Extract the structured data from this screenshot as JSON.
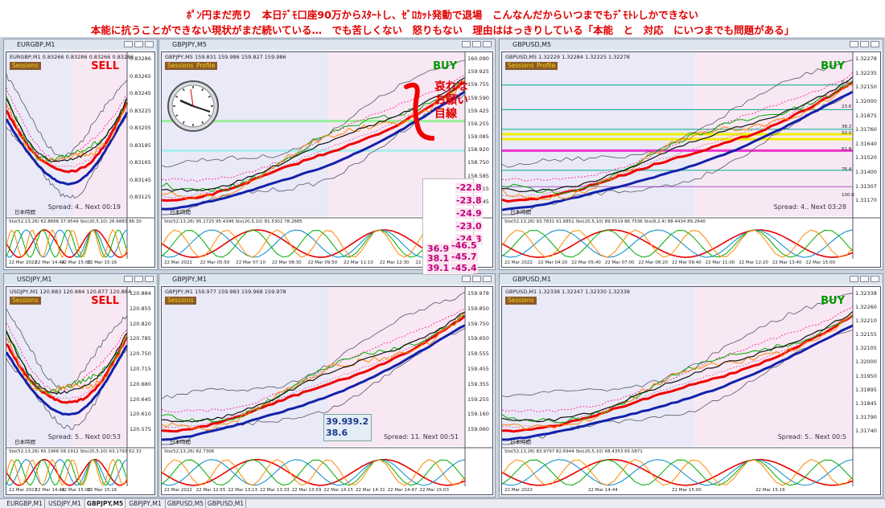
{
  "header": {
    "lines": [
      "ﾎﾟﾝ円まだ売り　本日ﾃﾞﾓ口座90万からｽﾀｰﾄし、ｾﾞﾛｶｯﾄ発動で退場　こんなんだからいつまでもﾃﾞﾓﾄﾚしかできない",
      "本能に抗うことができない現状がまだ続いている…　でも苦しくない　怒りもない　理由ははっきりしている「本能　と　対応　にいつまでも問題がある」"
    ]
  },
  "windows": [
    {
      "title": "EURGBP,M1",
      "info": "EURGBP,M1  0.83266 0.83286 0.83266 0.83286",
      "buttons": [
        "Sessions"
      ],
      "signal": "SELL",
      "spread": "Spread: 4.. Next 00:19",
      "clock_label": "日本時間",
      "osc": "Sto(52,13,26) 62.8666 37.9549 Sto(20,5,10) 26.6883 86.30",
      "yticks": [
        "0.83286",
        "0.83265",
        "0.83245",
        "0.83225",
        "0.83205",
        "0.83185",
        "0.83165",
        "0.83145",
        "0.83125"
      ],
      "xticks": [
        "22 Mar 2022",
        "22 Mar 14:44",
        "22 Mar 15:00",
        "22 Mar 15:16"
      ]
    },
    {
      "title": "GBPJPY,M5",
      "info": "GBPJPY,M5  159.831 159.986 159.827 159.986",
      "buttons": [
        "Sessions",
        "Profile"
      ],
      "signal": "BUY",
      "spread": "Spread: 9.",
      "clock_label": "日本時間",
      "osc": "Sto(52,13,26) 95.1725 95.4396 Sto(20,5,10) 81.5302 78.2685",
      "yticks": [
        "160.090",
        "159.925",
        "159.755",
        "159.590",
        "159.425",
        "159.255",
        "159.085",
        "158.920",
        "158.750",
        "158.585",
        "158.415",
        "158.245"
      ],
      "xticks": [
        "22 Mar 2022",
        "22 Mar 05:50",
        "22 Mar 07:10",
        "22 Mar 08:30",
        "22 Mar 09:50",
        "22 Mar 11:10",
        "22 Mar 12:30",
        "22 Mar 13:50"
      ]
    },
    {
      "title": "GBPUSD,M5",
      "info": "GBPUSD,M5  1.32229 1.32284 1.32225 1.32278",
      "buttons": [
        "Sessions",
        "Profile"
      ],
      "signal": "BUY",
      "spread": "Spread: 4.. Next 03:28",
      "clock_label": "日本時間",
      "osc": "Sto(52,13,26) 93.7831 91.6851 Sto(20,5,10) 89.5519 86.7536 Sto(8,2,4) 88.4434 89.2640",
      "yticks": [
        "1.32278",
        "1.32235",
        "1.32150",
        "1.32000",
        "1.31875",
        "1.31760",
        "1.31640",
        "1.31520",
        "1.31400",
        "1.31307",
        "1.31170"
      ],
      "fib": [
        "0.0",
        "23.6",
        "38.2",
        "50.0",
        "61.8",
        "76.4",
        "100.0"
      ],
      "xticks": [
        "22 Mar 2022",
        "22 Mar 04:20",
        "22 Mar 05:40",
        "22 Mar 07:00",
        "22 Mar 08:20",
        "22 Mar 09:40",
        "22 Mar 11:00",
        "22 Mar 12:20",
        "22 Mar 13:40",
        "22 Mar 15:00"
      ]
    },
    {
      "title": "USDJPY,M1",
      "info": "USDJPY,M1  120.883 120.884 120.877 120.884",
      "buttons": [
        "Sessions"
      ],
      "signal": "SELL",
      "spread": "Spread: 5.. Next 00:53",
      "clock_label": "日本時間",
      "osc": "Sto(52,13,26) 65.1966 58.1912 Sto(20,5,10) 63.1793 62.31",
      "yticks": [
        "120.884",
        "120.855",
        "120.820",
        "120.785",
        "120.750",
        "120.715",
        "120.680",
        "120.645",
        "120.610",
        "120.575"
      ],
      "xticks": [
        "22 Mar 2022",
        "22 Mar 14:44",
        "22 Mar 15:00",
        "22 Mar 15:16"
      ]
    },
    {
      "title": "GBPJPY,M1",
      "info": "GBPJPY,M1  159.977 159.983 159.968 159.978",
      "buttons": [
        "Sessions"
      ],
      "spread": "Spread: 11. Next 00:51",
      "clock_label": "日本時間",
      "osc": "Sto(52,13,26) 82.7306",
      "yticks": [
        "159.978",
        "159.850",
        "159.750",
        "159.650",
        "159.555",
        "159.455",
        "159.355",
        "159.255",
        "159.160",
        "159.060"
      ],
      "xticks": [
        "22 Mar 2022",
        "22 Mar 12:55",
        "22 Mar 13:13",
        "22 Mar 13:33",
        "22 Mar 13:59",
        "22 Mar 14:15",
        "22 Mar 14:31",
        "22 Mar 14:47",
        "22 Mar 15:03"
      ]
    },
    {
      "title": "GBPUSD,M1",
      "info": "GBPUSD,M1  1.32338 1.32347 1.32330 1.32338",
      "buttons": [
        "Sessions"
      ],
      "signal": "BUY",
      "spread": "Spread: 5.. Next 00:5",
      "clock_label": "日本時間",
      "osc": "Sto(52,13,26) 83.9797 82.6944 Sto(20,5,10) 68.4353 65.5871",
      "yticks": [
        "1.32338",
        "1.32260",
        "1.32210",
        "1.32155",
        "1.32105",
        "1.32000",
        "1.31950",
        "1.31895",
        "1.31845",
        "1.31790",
        "1.31740"
      ],
      "xticks": [
        "22 Mar 2022",
        "22 Mar 14:44",
        "22 Mar 15:00",
        "22 Mar 15:16"
      ]
    }
  ],
  "annotation": {
    "lines": [
      "哀れな",
      "お願い",
      "目線"
    ]
  },
  "popup": {
    "values": [
      "-22.8",
      "-23.8",
      "-24.9",
      "-23.0",
      "-24.3",
      "-46.5",
      "-45.7",
      "-45.4",
      "36.9",
      "38.1",
      "39.1"
    ]
  },
  "note_box": {
    "values": [
      "39.9",
      "39.2",
      "38.6"
    ]
  },
  "tabs": [
    "EURGBP,M1",
    "USDJPY,M1",
    "GBPJPY,M5",
    "GBPJPY,M1",
    "GBPUSD,M5",
    "GBPUSD,M1"
  ]
}
